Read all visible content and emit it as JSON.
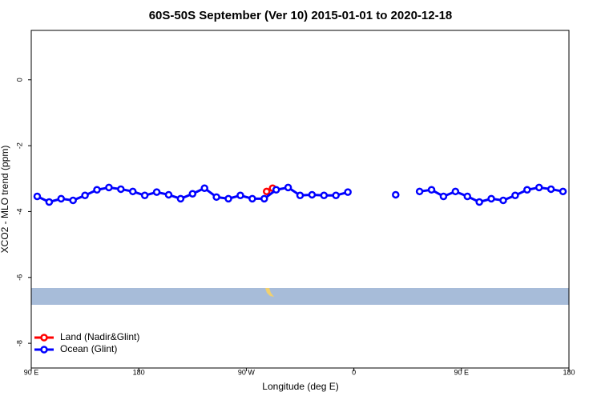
{
  "chart_data": {
    "type": "line",
    "title": "60S-50S September (Ver 10)   2015-01-01 to 2020-12-18",
    "x_label": "Longitude (deg E)",
    "y_label": "XCO2 - MLO trend (ppm)",
    "xlim": [
      90,
      540
    ],
    "ylim": [
      -8.75,
      1.5
    ],
    "xticks": [
      {
        "value": 90,
        "label": "90 E"
      },
      180,
      {
        "value": 270,
        "label": "90 W"
      },
      {
        "value": 360,
        "label": "0"
      },
      {
        "value": 450,
        "label": "90 E"
      },
      {
        "value": 540,
        "label": "180"
      }
    ],
    "yticks": [
      0,
      -2,
      -4,
      -6,
      -8
    ],
    "legend": "bottom-left",
    "series": [
      {
        "name": "Land (Nadir&Glint)",
        "color": "#ff0000",
        "x": [
          287,
          292
        ],
        "values": [
          -3.39,
          -3.29
        ]
      },
      {
        "name": "Ocean (Glint)",
        "color": "#0000ff",
        "x": [
          95,
          105,
          115,
          125,
          135,
          145,
          155,
          165,
          175,
          185,
          195,
          205,
          215,
          225,
          235,
          245,
          255,
          265,
          275,
          285,
          295,
          305,
          315,
          325,
          335,
          345,
          355,
          365,
          375,
          385,
          395,
          405,
          415,
          425,
          435,
          445,
          455,
          465,
          475,
          485,
          495,
          505,
          515,
          525,
          535
        ],
        "values": [
          -3.54,
          -3.71,
          -3.61,
          -3.66,
          -3.51,
          -3.34,
          -3.27,
          -3.32,
          -3.39,
          -3.51,
          -3.41,
          -3.49,
          -3.61,
          -3.46,
          -3.29,
          -3.56,
          -3.61,
          -3.51,
          -3.61,
          -3.61,
          -3.34,
          -3.27,
          -3.51,
          -3.49,
          -3.51,
          -3.51,
          -3.41,
          null,
          null,
          null,
          -3.49,
          null,
          -3.39,
          -3.34,
          -3.54,
          -3.39,
          -3.54,
          -3.71,
          -3.61,
          -3.66,
          -3.51,
          -3.34,
          -3.27,
          -3.32,
          -3.39
        ]
      }
    ]
  }
}
